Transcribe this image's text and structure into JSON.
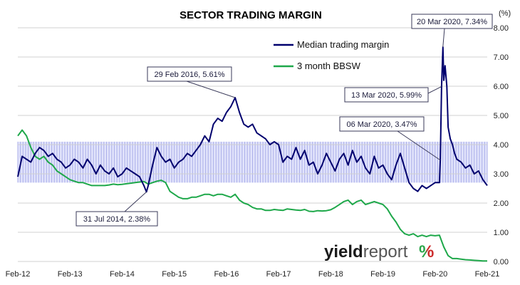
{
  "chart_data": {
    "type": "line",
    "title": "SECTOR TRADING MARGIN",
    "ylabel": "(%)",
    "ylim": [
      0,
      8
    ],
    "yticks": [
      "0.00",
      "1.00",
      "2.00",
      "3.00",
      "4.00",
      "5.00",
      "6.00",
      "7.00",
      "8.00"
    ],
    "x_ticks": [
      "Feb-12",
      "Feb-13",
      "Feb-14",
      "Feb-15",
      "Feb-16",
      "Feb-17",
      "Feb-18",
      "Feb-19",
      "Feb-20",
      "Feb-21"
    ],
    "band": {
      "low": 2.7,
      "high": 4.1,
      "x_start": "Feb-12",
      "x_end": "Feb-21"
    },
    "legend_position": "top-right",
    "series": [
      {
        "name": "Median trading margin",
        "color": "#00006e",
        "points": [
          [
            0,
            2.9
          ],
          [
            1,
            3.6
          ],
          [
            2,
            3.5
          ],
          [
            3,
            3.4
          ],
          [
            4,
            3.7
          ],
          [
            5,
            3.9
          ],
          [
            6,
            3.8
          ],
          [
            7,
            3.6
          ],
          [
            8,
            3.7
          ],
          [
            9,
            3.5
          ],
          [
            10,
            3.4
          ],
          [
            11,
            3.2
          ],
          [
            12,
            3.3
          ],
          [
            13,
            3.5
          ],
          [
            14,
            3.4
          ],
          [
            15,
            3.2
          ],
          [
            16,
            3.5
          ],
          [
            17,
            3.3
          ],
          [
            18,
            3.0
          ],
          [
            19,
            3.3
          ],
          [
            20,
            3.1
          ],
          [
            21,
            3.0
          ],
          [
            22,
            3.2
          ],
          [
            23,
            2.9
          ],
          [
            24,
            3.0
          ],
          [
            25,
            3.2
          ],
          [
            26,
            3.1
          ],
          [
            27,
            3.0
          ],
          [
            28,
            2.9
          ],
          [
            29,
            2.6
          ],
          [
            29.6,
            2.38
          ],
          [
            30,
            2.6
          ],
          [
            31,
            3.3
          ],
          [
            32,
            3.9
          ],
          [
            33,
            3.6
          ],
          [
            34,
            3.4
          ],
          [
            35,
            3.5
          ],
          [
            36,
            3.2
          ],
          [
            37,
            3.4
          ],
          [
            38,
            3.5
          ],
          [
            39,
            3.7
          ],
          [
            40,
            3.6
          ],
          [
            41,
            3.8
          ],
          [
            42,
            4.0
          ],
          [
            43,
            4.3
          ],
          [
            44,
            4.1
          ],
          [
            45,
            4.7
          ],
          [
            46,
            4.9
          ],
          [
            47,
            4.8
          ],
          [
            48,
            5.1
          ],
          [
            49,
            5.3
          ],
          [
            50,
            5.61
          ],
          [
            51,
            5.1
          ],
          [
            52,
            4.7
          ],
          [
            53,
            4.6
          ],
          [
            54,
            4.7
          ],
          [
            55,
            4.4
          ],
          [
            56,
            4.3
          ],
          [
            57,
            4.2
          ],
          [
            58,
            4.0
          ],
          [
            59,
            4.1
          ],
          [
            60,
            4.0
          ],
          [
            61,
            3.4
          ],
          [
            62,
            3.6
          ],
          [
            63,
            3.5
          ],
          [
            64,
            3.9
          ],
          [
            65,
            3.5
          ],
          [
            66,
            3.8
          ],
          [
            67,
            3.3
          ],
          [
            68,
            3.4
          ],
          [
            69,
            3.0
          ],
          [
            70,
            3.3
          ],
          [
            71,
            3.7
          ],
          [
            72,
            3.4
          ],
          [
            73,
            3.1
          ],
          [
            74,
            3.5
          ],
          [
            75,
            3.7
          ],
          [
            76,
            3.3
          ],
          [
            77,
            3.8
          ],
          [
            78,
            3.4
          ],
          [
            79,
            3.6
          ],
          [
            80,
            3.2
          ],
          [
            81,
            3.0
          ],
          [
            82,
            3.6
          ],
          [
            83,
            3.2
          ],
          [
            84,
            3.3
          ],
          [
            85,
            3.0
          ],
          [
            86,
            2.8
          ],
          [
            87,
            3.3
          ],
          [
            88,
            3.7
          ],
          [
            89,
            3.2
          ],
          [
            90,
            2.7
          ],
          [
            91,
            2.5
          ],
          [
            92,
            2.4
          ],
          [
            93,
            2.6
          ],
          [
            94,
            2.5
          ],
          [
            95,
            2.6
          ],
          [
            96,
            2.7
          ],
          [
            97,
            2.7
          ],
          [
            97.2,
            3.47
          ],
          [
            97.5,
            5.99
          ],
          [
            97.8,
            7.34
          ],
          [
            98,
            6.2
          ],
          [
            98.3,
            6.7
          ],
          [
            98.7,
            6.0
          ],
          [
            99,
            4.6
          ],
          [
            99.5,
            4.2
          ],
          [
            100,
            4.0
          ],
          [
            100.5,
            3.7
          ],
          [
            101,
            3.5
          ],
          [
            102,
            3.4
          ],
          [
            103,
            3.2
          ],
          [
            104,
            3.3
          ],
          [
            105,
            3.0
          ],
          [
            106,
            3.1
          ],
          [
            107,
            2.8
          ],
          [
            108,
            2.6
          ]
        ]
      },
      {
        "name": "3 month BBSW",
        "color": "#1ea84a",
        "points": [
          [
            0,
            4.3
          ],
          [
            1,
            4.5
          ],
          [
            2,
            4.3
          ],
          [
            3,
            3.9
          ],
          [
            4,
            3.6
          ],
          [
            5,
            3.5
          ],
          [
            6,
            3.6
          ],
          [
            7,
            3.4
          ],
          [
            8,
            3.3
          ],
          [
            9,
            3.1
          ],
          [
            10,
            3.0
          ],
          [
            11,
            2.9
          ],
          [
            12,
            2.8
          ],
          [
            13,
            2.75
          ],
          [
            14,
            2.7
          ],
          [
            15,
            2.7
          ],
          [
            16,
            2.65
          ],
          [
            17,
            2.6
          ],
          [
            18,
            2.6
          ],
          [
            19,
            2.6
          ],
          [
            20,
            2.6
          ],
          [
            21,
            2.62
          ],
          [
            22,
            2.65
          ],
          [
            23,
            2.63
          ],
          [
            24,
            2.64
          ],
          [
            25,
            2.66
          ],
          [
            26,
            2.68
          ],
          [
            27,
            2.7
          ],
          [
            28,
            2.72
          ],
          [
            29,
            2.74
          ],
          [
            30,
            2.65
          ],
          [
            31,
            2.7
          ],
          [
            32,
            2.75
          ],
          [
            33,
            2.78
          ],
          [
            34,
            2.7
          ],
          [
            35,
            2.4
          ],
          [
            36,
            2.3
          ],
          [
            37,
            2.2
          ],
          [
            38,
            2.15
          ],
          [
            39,
            2.15
          ],
          [
            40,
            2.2
          ],
          [
            41,
            2.2
          ],
          [
            42,
            2.25
          ],
          [
            43,
            2.3
          ],
          [
            44,
            2.3
          ],
          [
            45,
            2.25
          ],
          [
            46,
            2.3
          ],
          [
            47,
            2.3
          ],
          [
            48,
            2.25
          ],
          [
            49,
            2.2
          ],
          [
            50,
            2.3
          ],
          [
            51,
            2.1
          ],
          [
            52,
            2.0
          ],
          [
            53,
            1.95
          ],
          [
            54,
            1.85
          ],
          [
            55,
            1.8
          ],
          [
            56,
            1.8
          ],
          [
            57,
            1.75
          ],
          [
            58,
            1.75
          ],
          [
            59,
            1.78
          ],
          [
            60,
            1.76
          ],
          [
            61,
            1.75
          ],
          [
            62,
            1.8
          ],
          [
            63,
            1.78
          ],
          [
            64,
            1.76
          ],
          [
            65,
            1.75
          ],
          [
            66,
            1.78
          ],
          [
            67,
            1.72
          ],
          [
            68,
            1.71
          ],
          [
            69,
            1.74
          ],
          [
            70,
            1.73
          ],
          [
            71,
            1.74
          ],
          [
            72,
            1.77
          ],
          [
            73,
            1.85
          ],
          [
            74,
            1.95
          ],
          [
            75,
            2.05
          ],
          [
            76,
            2.1
          ],
          [
            77,
            1.95
          ],
          [
            78,
            2.05
          ],
          [
            79,
            2.1
          ],
          [
            80,
            1.95
          ],
          [
            81,
            2.0
          ],
          [
            82,
            2.05
          ],
          [
            83,
            2.0
          ],
          [
            84,
            1.95
          ],
          [
            85,
            1.8
          ],
          [
            86,
            1.55
          ],
          [
            87,
            1.35
          ],
          [
            88,
            1.1
          ],
          [
            89,
            0.95
          ],
          [
            90,
            0.9
          ],
          [
            91,
            0.95
          ],
          [
            92,
            0.85
          ],
          [
            93,
            0.9
          ],
          [
            94,
            0.85
          ],
          [
            95,
            0.9
          ],
          [
            96,
            0.88
          ],
          [
            97,
            0.9
          ],
          [
            98,
            0.5
          ],
          [
            99,
            0.2
          ],
          [
            100,
            0.1
          ],
          [
            101,
            0.1
          ],
          [
            102,
            0.08
          ],
          [
            103,
            0.06
          ],
          [
            104,
            0.05
          ],
          [
            105,
            0.04
          ],
          [
            106,
            0.03
          ],
          [
            107,
            0.02
          ],
          [
            108,
            0.02
          ]
        ]
      }
    ],
    "annotations": [
      {
        "text": "29 Feb 2016,  5.61%",
        "x": 50,
        "y": 5.61
      },
      {
        "text": "31 Jul 2014,  2.38%",
        "x": 29.6,
        "y": 2.38
      },
      {
        "text": "20 Mar 2020,  7.34%",
        "x": 97.8,
        "y": 7.34
      },
      {
        "text": "13 Mar 2020,  5.99%",
        "x": 97.5,
        "y": 5.99
      },
      {
        "text": "06 Mar 2020,  3.47%",
        "x": 97.2,
        "y": 3.47
      }
    ]
  },
  "brand": {
    "name_dark": "yield",
    "name_light": "report",
    "symbol": "%",
    "color_dark": "#1a1a1a",
    "color_light": "#555555",
    "symbol_color_a": "#2aa64a",
    "symbol_color_b": "#cc2a2a"
  }
}
